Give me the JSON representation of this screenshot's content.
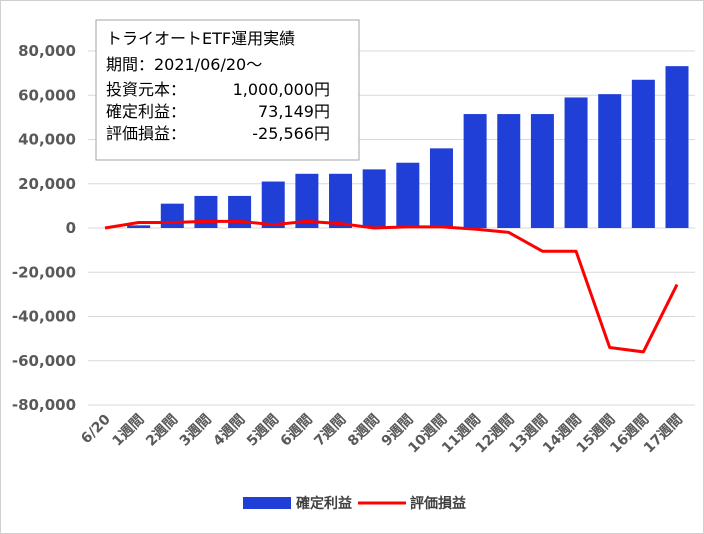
{
  "chart_data": {
    "type": "bar",
    "categories": [
      "6/20",
      "1週間",
      "2週間",
      "3週間",
      "4週間",
      "5週間",
      "6週間",
      "7週間",
      "8週間",
      "9週間",
      "10週間",
      "11週間",
      "12週間",
      "13週間",
      "14週間",
      "15週間",
      "16週間",
      "17週間"
    ],
    "series": [
      {
        "name": "確定利益",
        "type": "bar",
        "color": "#1f3fd6",
        "values": [
          0,
          1200,
          11000,
          14500,
          14500,
          21000,
          24500,
          24500,
          26500,
          29500,
          36000,
          51500,
          51500,
          51500,
          59000,
          60500,
          67000,
          73149
        ]
      },
      {
        "name": "評価損益",
        "type": "line",
        "color": "#ff0000",
        "values": [
          0,
          2500,
          2500,
          3000,
          3000,
          1500,
          3000,
          2000,
          0,
          500,
          500,
          -500,
          -2000,
          -10500,
          -10500,
          -54000,
          -56000,
          -25566
        ]
      }
    ],
    "ylim": [
      -80000,
      80000
    ],
    "yticks": [
      "80,000",
      "60,000",
      "40,000",
      "20,000",
      "0",
      "-20,000",
      "-40,000",
      "-60,000",
      "-80,000"
    ],
    "grid": true,
    "legend_position": "bottom"
  },
  "info_box": {
    "title": "トライオートETF運用実績",
    "line1": "期間：2021/06/20～",
    "line2_label": "投資元本：",
    "line2_value": "1,000,000円",
    "line3_label": "確定利益：",
    "line3_value": "73,149円",
    "line4_label": "評価損益：",
    "line4_value": "-25,566円"
  }
}
